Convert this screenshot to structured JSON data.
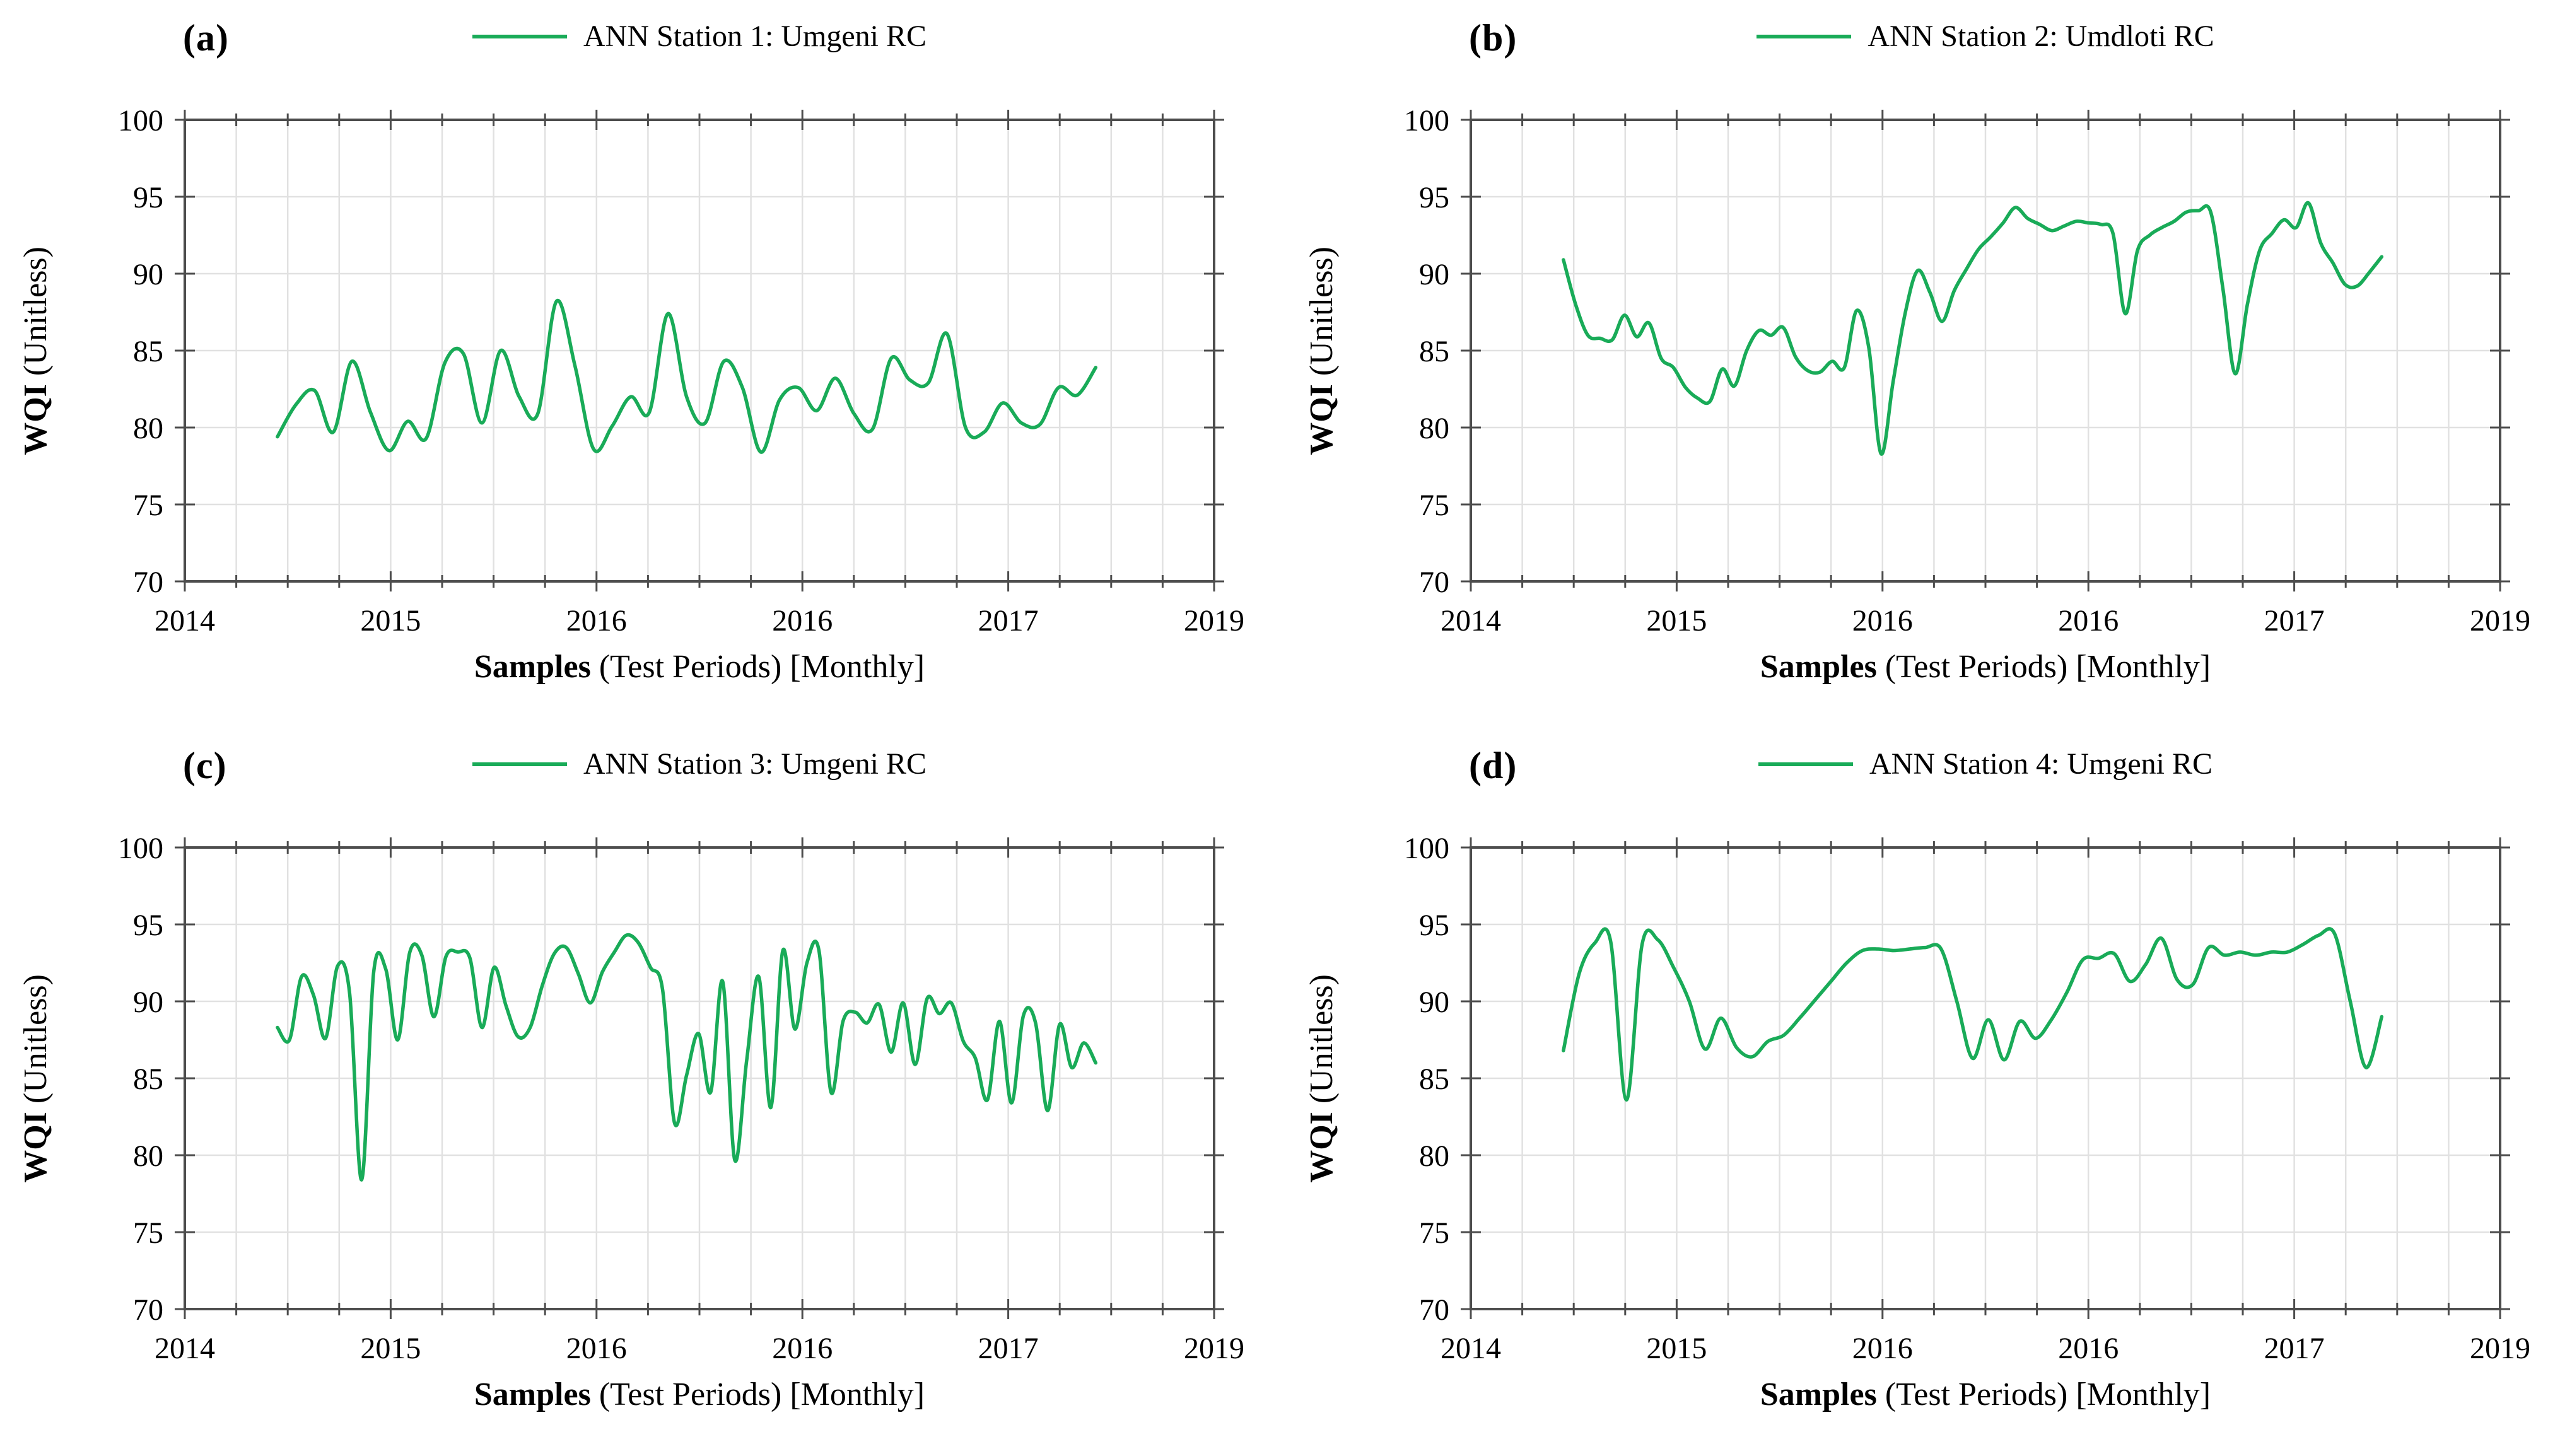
{
  "page": {
    "background": "#ffffff"
  },
  "shared": {
    "ylabel_bold": "WQI",
    "ylabel_rest": " (Unitless)",
    "xlabel_bold": "Samples",
    "xlabel_rest": " (Test Periods) [Monthly]",
    "colors": {
      "line": "#19AB58",
      "grid": "#E1E1E1",
      "axis": "#4D4D4D",
      "text": "#000000"
    }
  },
  "chart_data": [
    {
      "type": "line",
      "panel_label": "(a)",
      "legend": "ANN Station 1: Umgeni RC",
      "xlabel": "Samples (Test Periods) [Monthly]",
      "ylabel": "WQI (Unitless)",
      "ylim": [
        70,
        100
      ],
      "yticks": [
        70,
        75,
        80,
        85,
        90,
        95,
        100
      ],
      "xticklabels": [
        "2014",
        "2015",
        "2016",
        "2016",
        "2017",
        "2019"
      ],
      "grid": "on",
      "legend_position": "top-center",
      "x_minor_divisions": 4,
      "x_start_frac": 0.09,
      "x_end_frac": 0.885,
      "values": [
        79.4,
        81.5,
        82.4,
        79.7,
        84.3,
        81.0,
        78.5,
        80.4,
        79.3,
        84.2,
        84.8,
        80.3,
        85.0,
        82.0,
        80.9,
        88.2,
        84.0,
        78.6,
        80.1,
        82.0,
        81.0,
        87.4,
        82.0,
        80.3,
        84.3,
        82.6,
        78.4,
        81.8,
        82.6,
        81.1,
        83.2,
        80.9,
        79.9,
        84.5,
        83.1,
        82.9,
        86.1,
        80.0,
        79.7,
        81.6,
        80.3,
        80.2,
        82.6,
        82.1,
        83.9
      ]
    },
    {
      "type": "line",
      "panel_label": "(b)",
      "legend": "ANN Station 2: Umdloti RC",
      "xlabel": "Samples (Test Periods) [Monthly]",
      "ylabel": "WQI (Unitless)",
      "ylim": [
        70,
        100
      ],
      "yticks": [
        70,
        75,
        80,
        85,
        90,
        95,
        100
      ],
      "xticklabels": [
        "2014",
        "2015",
        "2016",
        "2016",
        "2017",
        "2019"
      ],
      "grid": "on",
      "legend_position": "top-center",
      "x_minor_divisions": 4,
      "x_start_frac": 0.09,
      "x_end_frac": 0.885,
      "values": [
        90.9,
        88.0,
        86.0,
        85.8,
        85.7,
        87.3,
        85.9,
        86.8,
        84.5,
        83.9,
        82.6,
        81.9,
        81.7,
        83.8,
        82.7,
        85.0,
        86.3,
        86.0,
        86.5,
        84.6,
        83.7,
        83.6,
        84.3,
        83.9,
        87.6,
        85.2,
        78.3,
        83.0,
        87.5,
        90.2,
        88.8,
        86.9,
        88.9,
        90.3,
        91.6,
        92.4,
        93.3,
        94.3,
        93.6,
        93.2,
        92.8,
        93.1,
        93.4,
        93.3,
        93.2,
        92.6,
        87.4,
        91.5,
        92.5,
        93.0,
        93.4,
        94.0,
        94.1,
        94.0,
        89.0,
        83.5,
        88.0,
        91.5,
        92.6,
        93.5,
        93.0,
        94.6,
        92.0,
        90.7,
        89.3,
        89.2,
        90.1,
        91.1
      ]
    },
    {
      "type": "line",
      "panel_label": "(c)",
      "legend": "ANN Station 3: Umgeni RC",
      "xlabel": "Samples (Test Periods) [Monthly]",
      "ylabel": "WQI (Unitless)",
      "ylim": [
        70,
        100
      ],
      "yticks": [
        70,
        75,
        80,
        85,
        90,
        95,
        100
      ],
      "xticklabels": [
        "2014",
        "2015",
        "2016",
        "2016",
        "2017",
        "2019"
      ],
      "grid": "on",
      "legend_position": "top-center",
      "x_minor_divisions": 4,
      "x_start_frac": 0.09,
      "x_end_frac": 0.885,
      "values": [
        88.3,
        87.5,
        91.6,
        90.4,
        87.6,
        92.3,
        90.5,
        78.4,
        91.9,
        92.1,
        87.5,
        93.2,
        93.0,
        89.0,
        92.9,
        93.2,
        92.8,
        88.3,
        92.2,
        89.7,
        87.7,
        88.3,
        91.0,
        93.1,
        93.5,
        91.8,
        89.9,
        91.9,
        93.2,
        94.3,
        93.8,
        92.2,
        90.8,
        82.1,
        85.2,
        87.9,
        84.1,
        91.3,
        79.7,
        86.2,
        91.6,
        83.1,
        93.3,
        88.2,
        92.5,
        93.3,
        84.1,
        88.7,
        89.3,
        88.6,
        89.8,
        86.7,
        89.9,
        85.9,
        90.2,
        89.2,
        89.9,
        87.4,
        86.3,
        83.6,
        88.7,
        83.4,
        89.1,
        88.6,
        82.9,
        88.5,
        85.7,
        87.3,
        86.0
      ]
    },
    {
      "type": "line",
      "panel_label": "(d)",
      "legend": "ANN Station 4: Umgeni RC",
      "xlabel": "Samples (Test Periods) [Monthly]",
      "ylabel": "WQI (Unitless)",
      "ylim": [
        70,
        100
      ],
      "yticks": [
        70,
        75,
        80,
        85,
        90,
        95,
        100
      ],
      "xticklabels": [
        "2014",
        "2015",
        "2016",
        "2016",
        "2017",
        "2019"
      ],
      "grid": "on",
      "legend_position": "top-center",
      "x_minor_divisions": 4,
      "x_start_frac": 0.09,
      "x_end_frac": 0.885,
      "values": [
        86.8,
        91.8,
        93.8,
        93.9,
        83.6,
        93.7,
        94.0,
        92.2,
        90.0,
        86.9,
        88.9,
        87.0,
        86.4,
        87.4,
        87.8,
        88.9,
        90.1,
        91.3,
        92.5,
        93.3,
        93.4,
        93.3,
        93.4,
        93.5,
        93.4,
        90.0,
        86.3,
        88.8,
        86.2,
        88.7,
        87.6,
        88.8,
        90.6,
        92.7,
        92.8,
        93.1,
        91.3,
        92.4,
        94.1,
        91.4,
        91.1,
        93.5,
        93.0,
        93.2,
        93.0,
        93.2,
        93.2,
        93.7,
        94.3,
        94.4,
        90.0,
        85.7,
        89.0
      ]
    }
  ]
}
